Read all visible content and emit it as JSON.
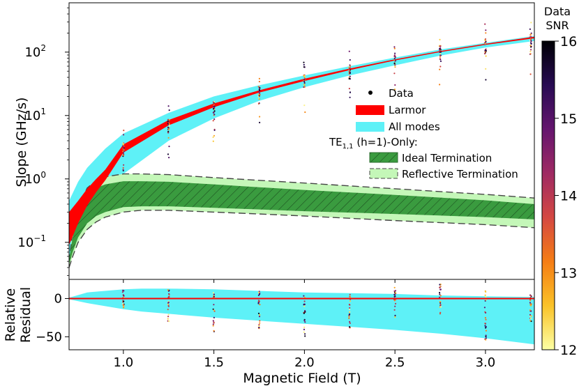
{
  "chart_data": {
    "type": "scatter",
    "x": {
      "label": "Magnetic Field (T)",
      "lim": [
        0.7,
        3.27
      ],
      "ticks": [
        1.0,
        1.5,
        2.0,
        2.5,
        3.0
      ],
      "tick_labels": [
        "1.0",
        "1.5",
        "2.0",
        "2.5",
        "3.0"
      ]
    },
    "top_panel": {
      "ylabel": "Slope (GHz/s)",
      "yscale": "log",
      "ylim": [
        0.026,
        600
      ],
      "yticks": [
        0.1,
        1,
        10,
        100
      ],
      "ytick_labels": [
        {
          "base": "10",
          "exp": "−1"
        },
        {
          "base": "10",
          "exp": "0"
        },
        {
          "base": "10",
          "exp": "1"
        },
        {
          "base": "10",
          "exp": "2"
        }
      ],
      "legend": {
        "placement": "center-right",
        "entries": [
          {
            "label": "Data",
            "kind": "marker",
            "color": "#000000"
          },
          {
            "label": "Larmor",
            "kind": "band",
            "color": "#ff0000"
          },
          {
            "label": "All modes",
            "kind": "band",
            "color": "#5ef1f7"
          }
        ],
        "subtitle": {
          "main": "TE",
          "sub": "1,1",
          "rest": " (h=1)-Only:"
        },
        "sub_entries": [
          {
            "label": "Ideal Termination",
            "kind": "hatched",
            "color": "#3a9b3f"
          },
          {
            "label": "Reflective Termination",
            "kind": "dashed-band",
            "color": "#c4f7b8"
          }
        ]
      },
      "series": [
        {
          "name": "Data",
          "note": "vertical scatter clusters at each field value",
          "x": [
            1.0,
            1.25,
            1.5,
            1.75,
            2.0,
            2.25,
            2.5,
            2.75,
            3.0,
            3.25
          ],
          "median": [
            3.2,
            7.5,
            14.0,
            24.0,
            37.0,
            53.0,
            77.0,
            106.0,
            135.0,
            168.0
          ]
        },
        {
          "name": "Larmor",
          "x": [
            0.7,
            0.75,
            0.8,
            0.85,
            0.9,
            1.0,
            1.25,
            1.5,
            1.75,
            2.0,
            2.25,
            2.5,
            2.75,
            3.0,
            3.27
          ],
          "low": [
            0.09,
            0.2,
            0.38,
            0.62,
            0.95,
            2.6,
            7.0,
            13.5,
            23.0,
            35.0,
            52.0,
            74.0,
            100.0,
            130.0,
            165.0
          ],
          "high": [
            0.3,
            0.45,
            0.7,
            1.0,
            1.4,
            3.5,
            8.5,
            15.5,
            25.0,
            38.0,
            55.0,
            77.0,
            104.0,
            135.0,
            175.0
          ]
        },
        {
          "name": "All modes",
          "x": [
            0.7,
            0.75,
            0.8,
            0.9,
            1.0,
            1.25,
            1.5,
            1.75,
            2.0,
            2.25,
            2.5,
            2.75,
            3.0,
            3.27
          ],
          "low": [
            0.05,
            0.1,
            0.17,
            0.55,
            1.2,
            4.0,
            9.0,
            17.0,
            28.0,
            43.0,
            62.0,
            88.0,
            118.0,
            150.0
          ],
          "high": [
            0.45,
            0.9,
            1.5,
            3.0,
            5.2,
            11.0,
            20.0,
            30.0,
            43.0,
            60.0,
            82.0,
            110.0,
            140.0,
            180.0
          ]
        },
        {
          "name": "Ideal Termination",
          "x": [
            0.7,
            0.72,
            0.75,
            0.8,
            0.85,
            0.9,
            1.0,
            1.1,
            1.25,
            1.5,
            1.75,
            2.0,
            2.5,
            3.0,
            3.27
          ],
          "low": [
            0.045,
            0.07,
            0.12,
            0.2,
            0.26,
            0.3,
            0.36,
            0.37,
            0.37,
            0.35,
            0.33,
            0.31,
            0.28,
            0.25,
            0.23
          ],
          "high": [
            0.055,
            0.12,
            0.28,
            0.55,
            0.72,
            0.82,
            0.92,
            0.92,
            0.9,
            0.82,
            0.74,
            0.67,
            0.56,
            0.46,
            0.4
          ]
        },
        {
          "name": "Reflective Termination",
          "x": [
            0.7,
            0.72,
            0.75,
            0.8,
            0.85,
            0.9,
            1.0,
            1.1,
            1.25,
            1.5,
            1.75,
            2.0,
            2.5,
            3.0,
            3.27
          ],
          "low": [
            0.04,
            0.06,
            0.1,
            0.16,
            0.21,
            0.25,
            0.3,
            0.32,
            0.32,
            0.3,
            0.28,
            0.26,
            0.22,
            0.19,
            0.17
          ],
          "high": [
            0.05,
            0.15,
            0.36,
            0.72,
            0.95,
            1.08,
            1.2,
            1.2,
            1.17,
            1.05,
            0.95,
            0.86,
            0.7,
            0.57,
            0.5
          ]
        }
      ]
    },
    "bottom_panel": {
      "ylabel_lines": [
        "Relative",
        "Residual"
      ],
      "ylim": [
        -67,
        25
      ],
      "yticks": [
        0,
        -50
      ],
      "ytick_labels": [
        "0",
        "−50"
      ],
      "series": [
        {
          "name": "Larmor",
          "x": [
            0.7,
            3.27
          ],
          "values": [
            0,
            0
          ]
        },
        {
          "name": "All modes",
          "x": [
            0.7,
            0.8,
            1.0,
            1.1,
            1.25,
            1.5,
            1.75,
            2.0,
            2.25,
            2.5,
            2.75,
            3.0,
            3.27
          ],
          "low": [
            -1,
            -6,
            -14,
            -17,
            -20,
            -25,
            -29,
            -33,
            -37,
            -41,
            -46,
            -52,
            -60
          ],
          "high": [
            1,
            8,
            12,
            13,
            13,
            12,
            10,
            8,
            7,
            6,
            4,
            3,
            2
          ]
        },
        {
          "name": "Data",
          "x": [
            1.0,
            1.25,
            1.5,
            1.75,
            2.0,
            2.25,
            2.5,
            2.75,
            3.0,
            3.25
          ],
          "spread_low": [
            -12,
            -30,
            -45,
            -40,
            -50,
            -45,
            -25,
            -20,
            -55,
            -30
          ],
          "spread_high": [
            12,
            12,
            10,
            10,
            10,
            10,
            15,
            20,
            10,
            5
          ]
        }
      ]
    },
    "colorbar": {
      "title_lines": [
        "Data",
        "SNR"
      ],
      "range": [
        12,
        16
      ],
      "ticks": [
        12,
        13,
        14,
        15,
        16
      ],
      "tick_labels": [
        "12",
        "13",
        "14",
        "15",
        "16"
      ],
      "colormap": "inferno_r",
      "stops": [
        "#fcffa4",
        "#fac228",
        "#f57d15",
        "#d44842",
        "#9f2a63",
        "#65156e",
        "#280b53",
        "#000004"
      ]
    }
  }
}
